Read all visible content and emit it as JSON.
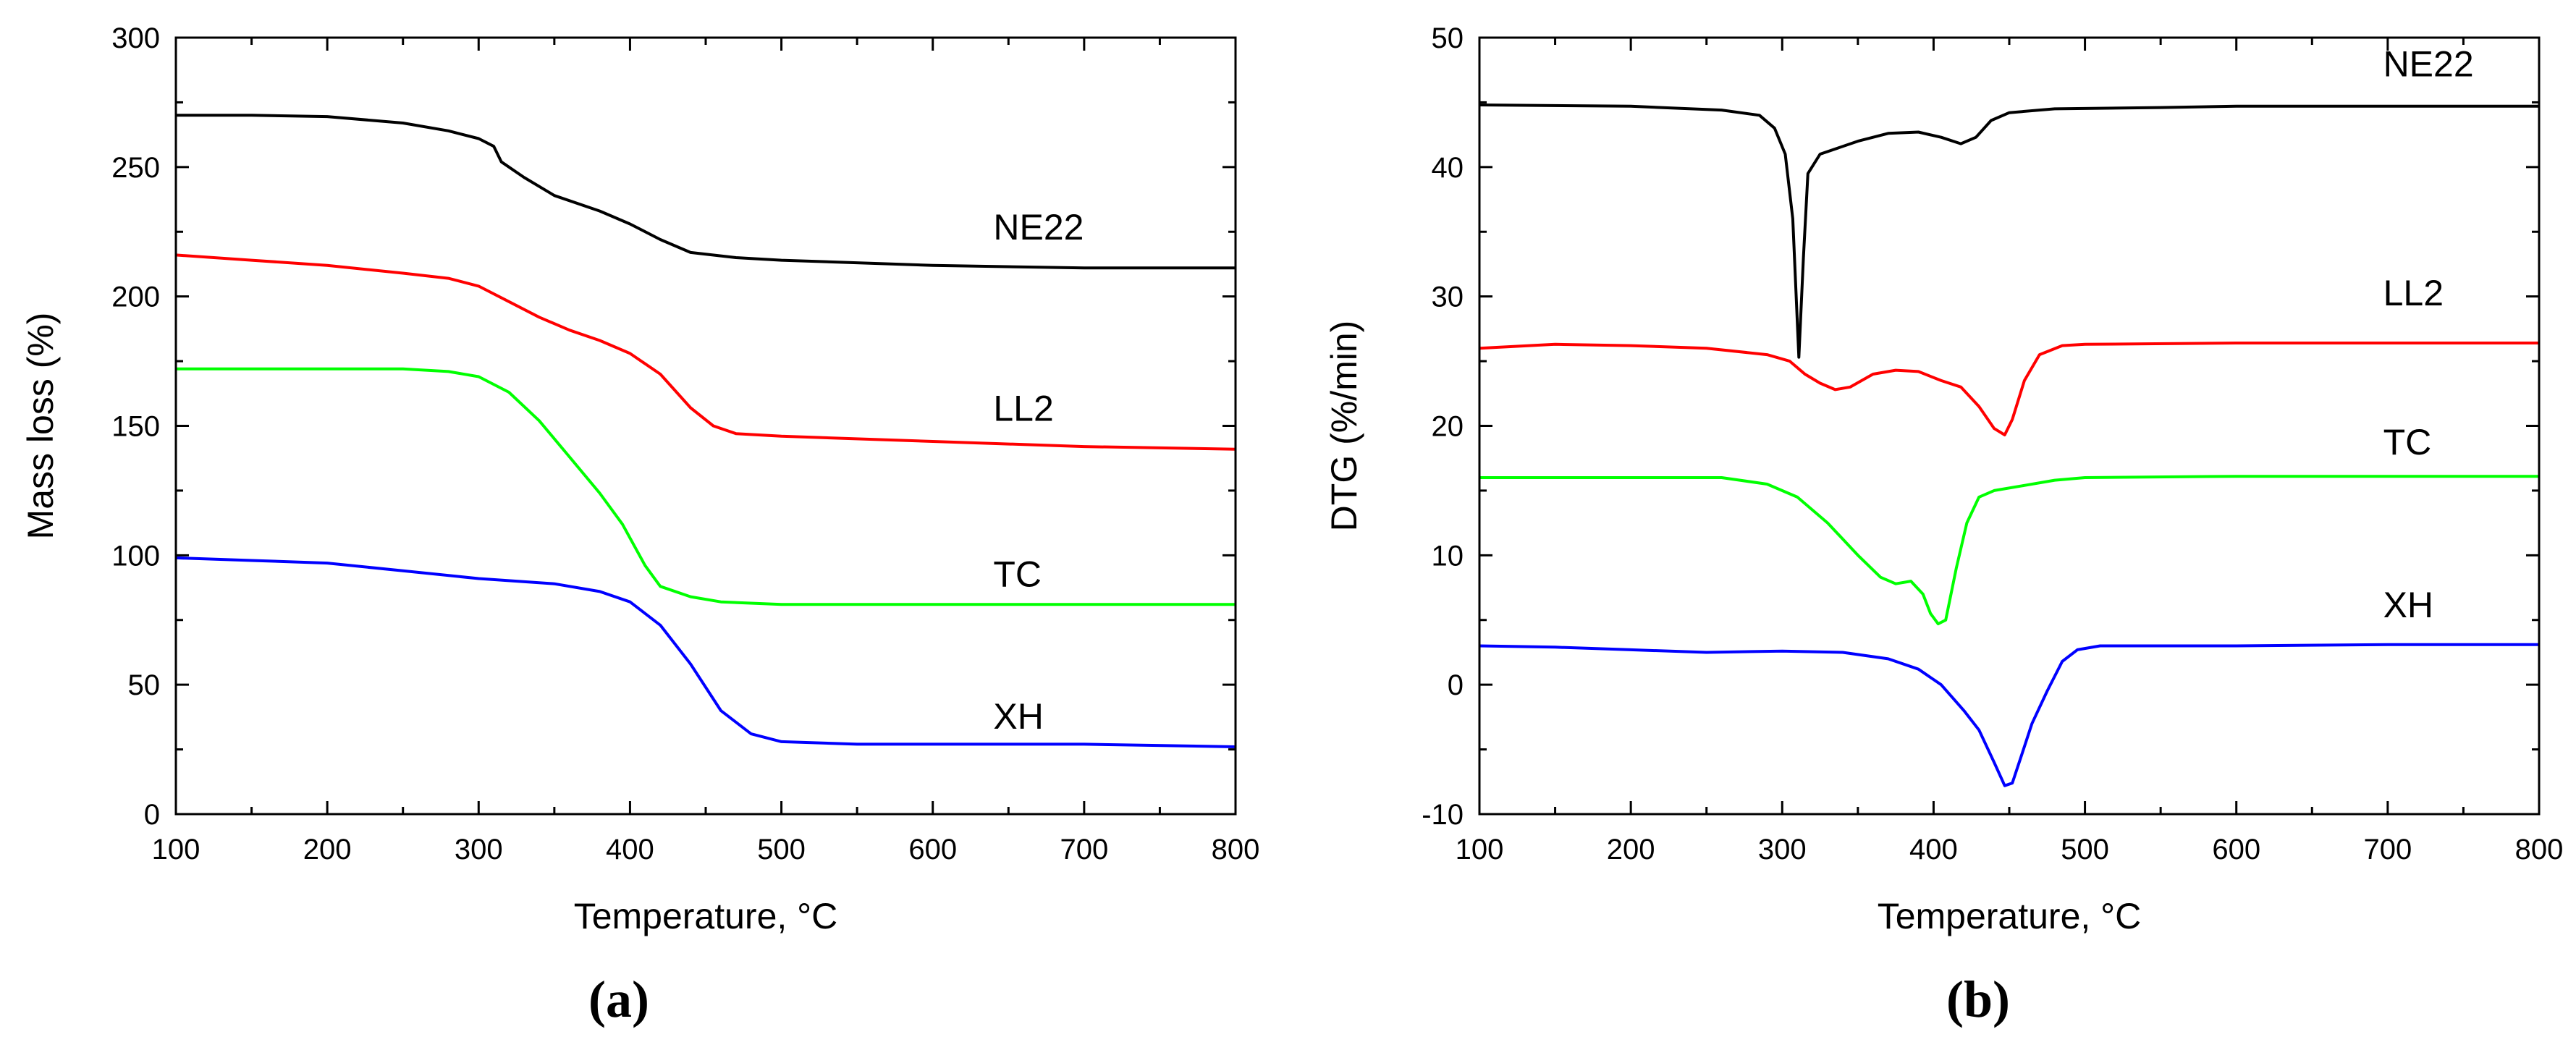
{
  "chart_data": [
    {
      "type": "line",
      "panel_label": "(a)",
      "xlabel": "Temperature, °C",
      "ylabel": "Mass loss (%)",
      "xlim": [
        100,
        800
      ],
      "ylim": [
        0,
        300
      ],
      "x_ticks": [
        100,
        200,
        300,
        400,
        500,
        600,
        700,
        800
      ],
      "y_ticks": [
        0,
        50,
        100,
        150,
        200,
        250,
        300
      ],
      "grid": false,
      "series": [
        {
          "name": "NE22",
          "color": "#000000",
          "label_at": [
            640,
            222
          ],
          "points": [
            [
              100,
              270
            ],
            [
              150,
              270
            ],
            [
              200,
              269.5
            ],
            [
              250,
              267
            ],
            [
              280,
              264
            ],
            [
              300,
              261
            ],
            [
              310,
              258
            ],
            [
              315,
              252
            ],
            [
              330,
              246
            ],
            [
              350,
              239
            ],
            [
              380,
              233
            ],
            [
              400,
              228
            ],
            [
              420,
              222
            ],
            [
              440,
              217
            ],
            [
              470,
              215
            ],
            [
              500,
              214
            ],
            [
              600,
              212
            ],
            [
              700,
              211
            ],
            [
              800,
              211
            ]
          ]
        },
        {
          "name": "LL2",
          "color": "#ff0000",
          "label_at": [
            640,
            152
          ],
          "points": [
            [
              100,
              216
            ],
            [
              150,
              214
            ],
            [
              200,
              212
            ],
            [
              250,
              209
            ],
            [
              280,
              207
            ],
            [
              300,
              204
            ],
            [
              320,
              198
            ],
            [
              340,
              192
            ],
            [
              360,
              187
            ],
            [
              380,
              183
            ],
            [
              400,
              178
            ],
            [
              420,
              170
            ],
            [
              440,
              157
            ],
            [
              455,
              150
            ],
            [
              470,
              147
            ],
            [
              500,
              146
            ],
            [
              600,
              144
            ],
            [
              700,
              142
            ],
            [
              800,
              141
            ]
          ]
        },
        {
          "name": "TC",
          "color": "#00ff00",
          "label_at": [
            640,
            88
          ],
          "points": [
            [
              100,
              172
            ],
            [
              200,
              172
            ],
            [
              250,
              172
            ],
            [
              280,
              171
            ],
            [
              300,
              169
            ],
            [
              320,
              163
            ],
            [
              340,
              152
            ],
            [
              360,
              138
            ],
            [
              380,
              124
            ],
            [
              395,
              112
            ],
            [
              410,
              96
            ],
            [
              420,
              88
            ],
            [
              440,
              84
            ],
            [
              460,
              82
            ],
            [
              500,
              81
            ],
            [
              600,
              81
            ],
            [
              700,
              81
            ],
            [
              800,
              81
            ]
          ]
        },
        {
          "name": "XH",
          "color": "#0000ff",
          "label_at": [
            640,
            33
          ],
          "points": [
            [
              100,
              99
            ],
            [
              150,
              98
            ],
            [
              200,
              97
            ],
            [
              250,
              94
            ],
            [
              300,
              91
            ],
            [
              350,
              89
            ],
            [
              380,
              86
            ],
            [
              400,
              82
            ],
            [
              420,
              73
            ],
            [
              440,
              58
            ],
            [
              460,
              40
            ],
            [
              480,
              31
            ],
            [
              500,
              28
            ],
            [
              550,
              27
            ],
            [
              600,
              27
            ],
            [
              700,
              27
            ],
            [
              800,
              26
            ]
          ]
        }
      ]
    },
    {
      "type": "line",
      "panel_label": "(b)",
      "xlabel": "Temperature, °C",
      "ylabel": "DTG (%/min)",
      "xlim": [
        100,
        800
      ],
      "ylim": [
        -10,
        50
      ],
      "x_ticks": [
        100,
        200,
        300,
        400,
        500,
        600,
        700,
        800
      ],
      "y_ticks": [
        -10,
        0,
        10,
        20,
        30,
        40,
        50
      ],
      "grid": false,
      "series": [
        {
          "name": "NE22",
          "color": "#000000",
          "label_at": [
            697,
            47
          ],
          "points": [
            [
              100,
              44.8
            ],
            [
              200,
              44.7
            ],
            [
              260,
              44.4
            ],
            [
              285,
              44
            ],
            [
              295,
              43
            ],
            [
              302,
              41
            ],
            [
              307,
              36
            ],
            [
              311,
              25.3
            ],
            [
              314,
              33
            ],
            [
              317,
              39.5
            ],
            [
              325,
              41
            ],
            [
              350,
              42
            ],
            [
              370,
              42.6
            ],
            [
              390,
              42.7
            ],
            [
              405,
              42.3
            ],
            [
              418,
              41.8
            ],
            [
              428,
              42.3
            ],
            [
              438,
              43.6
            ],
            [
              450,
              44.2
            ],
            [
              480,
              44.5
            ],
            [
              550,
              44.6
            ],
            [
              600,
              44.7
            ],
            [
              700,
              44.7
            ],
            [
              800,
              44.7
            ]
          ]
        },
        {
          "name": "LL2",
          "color": "#ff0000",
          "label_at": [
            697,
            29.3
          ],
          "points": [
            [
              100,
              26
            ],
            [
              150,
              26.3
            ],
            [
              200,
              26.2
            ],
            [
              250,
              26
            ],
            [
              290,
              25.5
            ],
            [
              305,
              25
            ],
            [
              315,
              24
            ],
            [
              325,
              23.3
            ],
            [
              335,
              22.8
            ],
            [
              345,
              23
            ],
            [
              360,
              24
            ],
            [
              375,
              24.3
            ],
            [
              390,
              24.2
            ],
            [
              405,
              23.5
            ],
            [
              418,
              23
            ],
            [
              430,
              21.5
            ],
            [
              440,
              19.8
            ],
            [
              447,
              19.3
            ],
            [
              452,
              20.5
            ],
            [
              460,
              23.5
            ],
            [
              470,
              25.5
            ],
            [
              485,
              26.2
            ],
            [
              500,
              26.3
            ],
            [
              600,
              26.4
            ],
            [
              700,
              26.4
            ],
            [
              800,
              26.4
            ]
          ]
        },
        {
          "name": "TC",
          "color": "#00ff00",
          "label_at": [
            697,
            17.8
          ],
          "points": [
            [
              100,
              16
            ],
            [
              200,
              16
            ],
            [
              260,
              16
            ],
            [
              290,
              15.5
            ],
            [
              310,
              14.5
            ],
            [
              330,
              12.5
            ],
            [
              350,
              10
            ],
            [
              365,
              8.3
            ],
            [
              375,
              7.8
            ],
            [
              385,
              8
            ],
            [
              393,
              7
            ],
            [
              398,
              5.5
            ],
            [
              403,
              4.7
            ],
            [
              408,
              5
            ],
            [
              415,
              9
            ],
            [
              422,
              12.5
            ],
            [
              430,
              14.5
            ],
            [
              440,
              15
            ],
            [
              460,
              15.4
            ],
            [
              480,
              15.8
            ],
            [
              500,
              16
            ],
            [
              600,
              16.1
            ],
            [
              700,
              16.1
            ],
            [
              800,
              16.1
            ]
          ]
        },
        {
          "name": "XH",
          "color": "#0000ff",
          "label_at": [
            697,
            5.2
          ],
          "points": [
            [
              100,
              3
            ],
            [
              150,
              2.9
            ],
            [
              200,
              2.7
            ],
            [
              250,
              2.5
            ],
            [
              300,
              2.6
            ],
            [
              340,
              2.5
            ],
            [
              370,
              2
            ],
            [
              390,
              1.2
            ],
            [
              405,
              0
            ],
            [
              420,
              -2
            ],
            [
              430,
              -3.5
            ],
            [
              440,
              -6
            ],
            [
              447,
              -7.8
            ],
            [
              452,
              -7.6
            ],
            [
              458,
              -5.5
            ],
            [
              465,
              -3
            ],
            [
              475,
              -0.5
            ],
            [
              485,
              1.8
            ],
            [
              495,
              2.7
            ],
            [
              510,
              3
            ],
            [
              600,
              3
            ],
            [
              700,
              3.1
            ],
            [
              800,
              3.1
            ]
          ]
        }
      ]
    }
  ]
}
